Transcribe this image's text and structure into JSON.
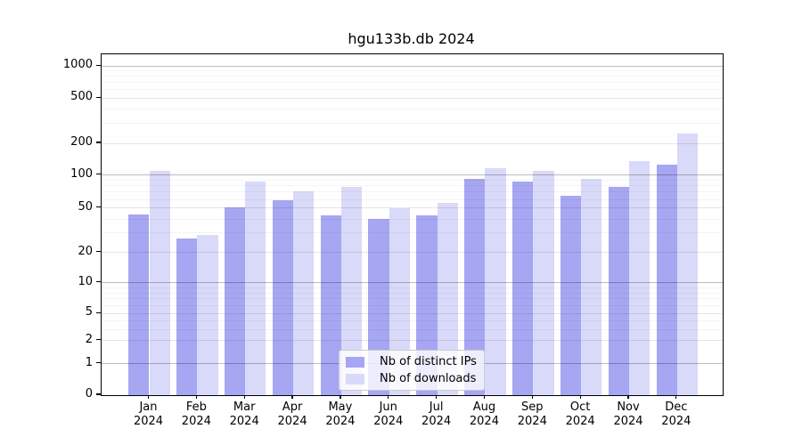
{
  "title": "hgu133b.db 2024",
  "colors": {
    "distinct_ips_bar": "#a6a6f2",
    "downloads_bar": "#d9d9f9",
    "axis": "#000000",
    "grid_major": "rgba(0,0,0,0.26)",
    "grid_mid": "rgba(0,0,0,0.10)",
    "grid_minor": "rgba(0,0,0,0.045)",
    "legend_border": "#cccccc"
  },
  "legend": {
    "items": [
      {
        "label": "Nb of distinct IPs",
        "color": "#a6a6f2"
      },
      {
        "label": "Nb of downloads",
        "color": "#d9d9f9"
      }
    ]
  },
  "chart_data": {
    "type": "bar",
    "title": "hgu133b.db 2024",
    "categories": [
      "Jan",
      "Feb",
      "Mar",
      "Apr",
      "May",
      "Jun",
      "Jul",
      "Aug",
      "Sep",
      "Oct",
      "Nov",
      "Dec"
    ],
    "year": "2024",
    "series": [
      {
        "name": "Nb of distinct IPs",
        "values": [
          44,
          27,
          51,
          59,
          43,
          40,
          43,
          92,
          87,
          65,
          78,
          125
        ]
      },
      {
        "name": "Nb of downloads",
        "values": [
          110,
          29,
          88,
          71,
          78,
          50,
          56,
          115,
          109,
          93,
          136,
          243
        ]
      }
    ],
    "xlabel": "",
    "ylabel": "",
    "y_ticks": [
      0,
      1,
      2,
      5,
      10,
      20,
      50,
      100,
      200,
      500,
      1000
    ],
    "ylim": [
      0,
      1000
    ],
    "scale": "log(1+x)",
    "grid": true,
    "legend_position": "inside-bottom-center"
  }
}
